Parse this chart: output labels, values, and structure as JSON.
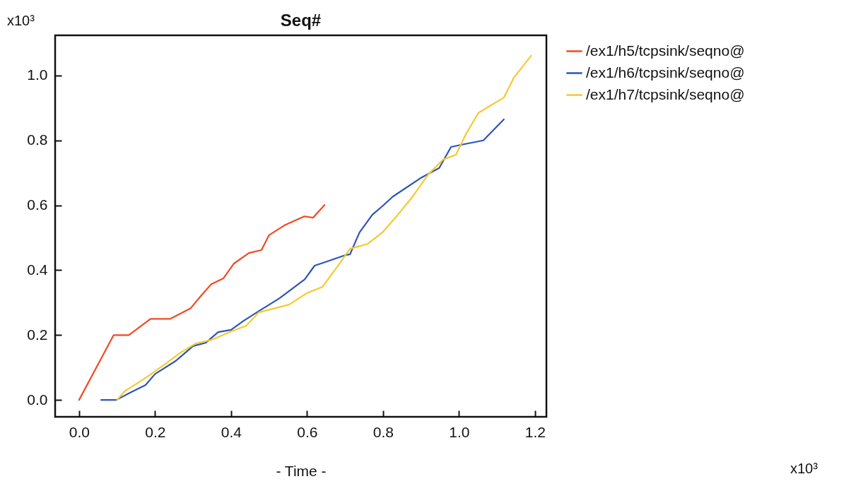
{
  "chart_data": {
    "type": "line",
    "title": "Seq#",
    "xlabel": "- Time -",
    "annotations": [
      "x10³",
      "x10³"
    ],
    "xlim": [
      -0.063,
      1.23
    ],
    "ylim": [
      -0.052,
      1.124
    ],
    "xticks": [
      {
        "value": 0,
        "label": "0.0"
      },
      0.2,
      0.4,
      0.6,
      0.8,
      {
        "value": 1,
        "label": "1.0"
      },
      1.2
    ],
    "yticks": [
      {
        "value": 0,
        "label": "0.0"
      },
      0.2,
      0.4,
      0.6,
      0.8,
      {
        "value": 1,
        "label": "1.0"
      }
    ],
    "grid": false,
    "legend": "right",
    "marker": "none",
    "line_style": "solid",
    "series": [
      {
        "name": "/ex1/h5/tcpsink/seqno@",
        "color": "#f04a24",
        "x": [
          0.0,
          0.091,
          0.131,
          0.188,
          0.24,
          0.294,
          0.32,
          0.348,
          0.38,
          0.407,
          0.447,
          0.48,
          0.5,
          0.54,
          0.593,
          0.616,
          0.646
        ],
        "values": [
          0.0,
          0.2,
          0.2,
          0.25,
          0.25,
          0.283,
          0.32,
          0.357,
          0.375,
          0.42,
          0.453,
          0.462,
          0.508,
          0.538,
          0.566,
          0.562,
          0.601
        ]
      },
      {
        "name": "/ex1/h6/tcpsink/seqno@",
        "color": "#2c55b8",
        "x": [
          0.058,
          0.098,
          0.14,
          0.175,
          0.2,
          0.254,
          0.3,
          0.333,
          0.366,
          0.4,
          0.433,
          0.473,
          0.527,
          0.594,
          0.62,
          0.66,
          0.7,
          0.713,
          0.738,
          0.772,
          0.798,
          0.826,
          0.899,
          0.948,
          0.979,
          1.012,
          1.064,
          1.118
        ],
        "values": [
          0.0,
          0.0,
          0.026,
          0.046,
          0.08,
          0.12,
          0.166,
          0.176,
          0.209,
          0.216,
          0.244,
          0.274,
          0.313,
          0.372,
          0.414,
          0.43,
          0.446,
          0.449,
          0.516,
          0.571,
          0.597,
          0.627,
          0.684,
          0.715,
          0.78,
          0.788,
          0.8,
          0.865
        ]
      },
      {
        "name": "/ex1/h7/tcpsink/seqno@",
        "color": "#f5c92e",
        "x": [
          0.1,
          0.121,
          0.134,
          0.175,
          0.227,
          0.267,
          0.307,
          0.348,
          0.4,
          0.44,
          0.473,
          0.553,
          0.599,
          0.64,
          0.679,
          0.713,
          0.759,
          0.798,
          0.839,
          0.878,
          0.919,
          0.958,
          0.992,
          1.018,
          1.051,
          1.118,
          1.144,
          1.19
        ],
        "values": [
          0.0,
          0.028,
          0.037,
          0.068,
          0.111,
          0.146,
          0.174,
          0.185,
          0.211,
          0.229,
          0.27,
          0.294,
          0.329,
          0.348,
          0.41,
          0.466,
          0.481,
          0.516,
          0.571,
          0.627,
          0.695,
          0.741,
          0.756,
          0.819,
          0.885,
          0.932,
          0.993,
          1.061
        ]
      }
    ]
  }
}
